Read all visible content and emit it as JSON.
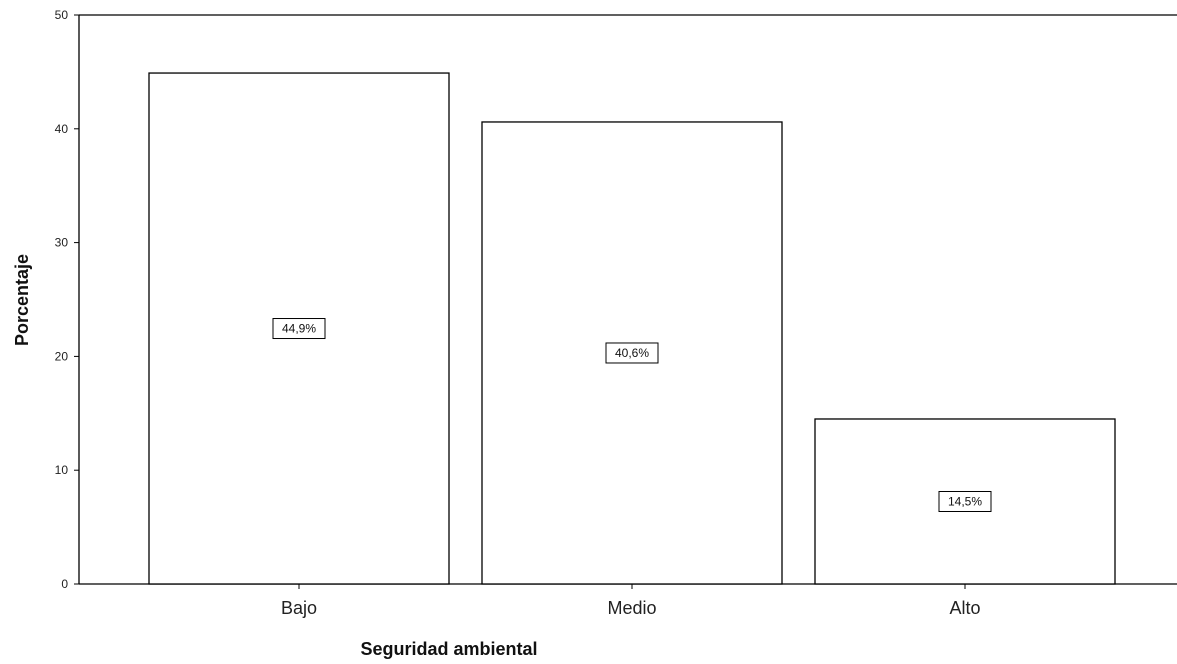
{
  "chart_data": {
    "type": "bar",
    "xlabel": "Seguridad ambiental",
    "ylabel": "Porcentaje",
    "categories": [
      "Bajo",
      "Medio",
      "Alto"
    ],
    "values": [
      44.9,
      40.6,
      14.5
    ],
    "data_labels": [
      "44,9%",
      "40,6%",
      "14,5%"
    ],
    "ylim": [
      0,
      50
    ],
    "yticks": [
      0,
      10,
      20,
      30,
      40,
      50
    ],
    "grid": false,
    "legend": "none",
    "bar_fill": "#ffffff",
    "bar_stroke": "#000000"
  }
}
